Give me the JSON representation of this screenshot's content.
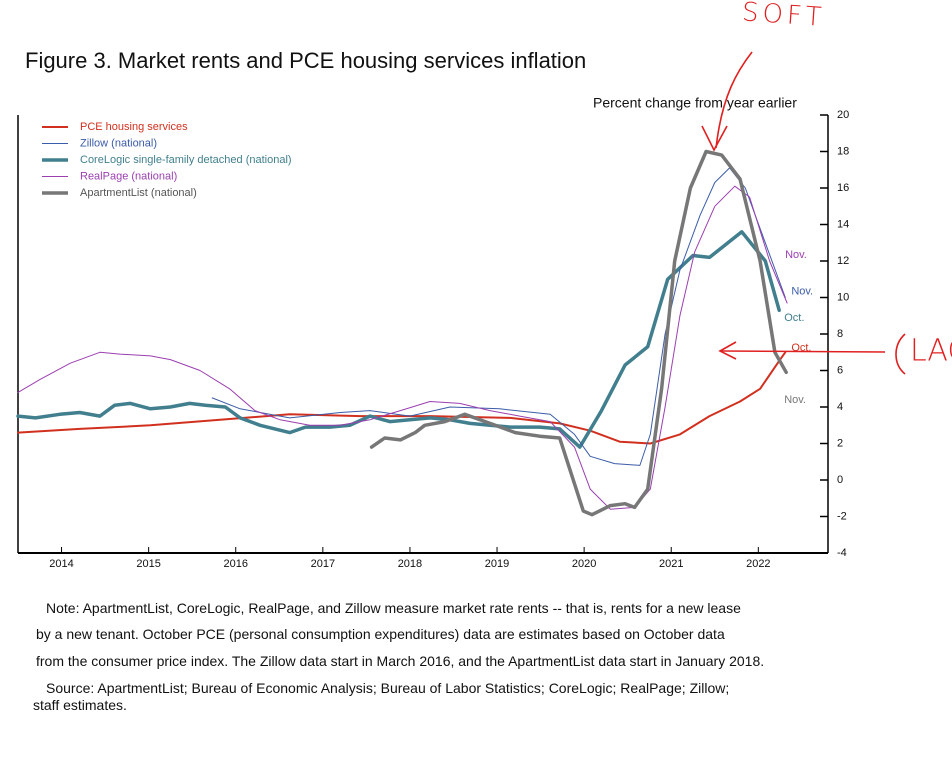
{
  "chart_data": {
    "type": "line",
    "title": "Figure 3. Market rents and PCE housing services inflation",
    "y_label": "Percent change from year earlier",
    "xlim": [
      2014,
      2023.3
    ],
    "ylim": [
      -4,
      20
    ],
    "yticks": [
      -4,
      -2,
      0,
      2,
      4,
      6,
      8,
      10,
      12,
      14,
      16,
      18,
      20
    ],
    "xticks": [
      {
        "value": 2014.5,
        "label": "2014"
      },
      {
        "value": 2015.5,
        "label": "2015"
      },
      {
        "value": 2016.5,
        "label": "2016"
      },
      {
        "value": 2017.5,
        "label": "2017"
      },
      {
        "value": 2018.5,
        "label": "2018"
      },
      {
        "value": 2019.5,
        "label": "2019"
      },
      {
        "value": 2020.5,
        "label": "2020"
      },
      {
        "value": 2021.5,
        "label": "2021"
      },
      {
        "value": 2022.5,
        "label": "2022"
      }
    ],
    "series": [
      {
        "name": "PCE housing services",
        "color": "#d2301e",
        "line_width": 2,
        "end_label": "Oct.",
        "x": [
          2014.0,
          2014.71,
          2015.52,
          2016.32,
          2017.12,
          2017.93,
          2018.73,
          2019.65,
          2020.22,
          2020.57,
          2020.91,
          2021.26,
          2021.6,
          2021.94,
          2022.29,
          2022.52,
          2022.75,
          2022.81
        ],
        "values": [
          2.6,
          2.8,
          3.0,
          3.3,
          3.6,
          3.5,
          3.5,
          3.4,
          3.1,
          2.7,
          2.1,
          2.0,
          2.5,
          3.5,
          4.3,
          5.0,
          6.6,
          7.0
        ]
      },
      {
        "name": "Zillow (national)",
        "color": "#3b5ca8",
        "line_width": 1,
        "end_label": "Nov.",
        "x": [
          2016.23,
          2016.55,
          2017.12,
          2017.7,
          2018.04,
          2018.5,
          2018.96,
          2019.53,
          2020.11,
          2020.39,
          2020.57,
          2020.85,
          2021.14,
          2021.26,
          2021.43,
          2021.6,
          2021.83,
          2022.0,
          2022.17,
          2022.35,
          2022.58,
          2022.81
        ],
        "values": [
          4.5,
          3.9,
          3.4,
          3.7,
          3.8,
          3.5,
          4.0,
          3.9,
          3.6,
          2.5,
          1.3,
          0.9,
          0.8,
          2.5,
          8,
          11.5,
          14.5,
          16.3,
          17.1,
          16.0,
          13,
          10
        ]
      },
      {
        "name": "CoreLogic single-family detached (national)",
        "color": "#417f8e",
        "line_width": 3.5,
        "end_label": "Oct.",
        "x": [
          2014.0,
          2014.2,
          2014.48,
          2014.71,
          2014.94,
          2015.11,
          2015.29,
          2015.52,
          2015.75,
          2015.97,
          2016.15,
          2016.38,
          2016.55,
          2016.78,
          2017.12,
          2017.3,
          2017.58,
          2017.81,
          2018.04,
          2018.27,
          2018.5,
          2018.73,
          2018.96,
          2019.19,
          2019.42,
          2019.65,
          2019.99,
          2020.22,
          2020.45,
          2020.7,
          2020.97,
          2021.23,
          2021.46,
          2021.75,
          2021.94,
          2022.31,
          2022.58,
          2022.74
        ],
        "values": [
          3.5,
          3.4,
          3.6,
          3.7,
          3.5,
          4.1,
          4.2,
          3.9,
          4.0,
          4.2,
          4.1,
          4.0,
          3.4,
          3.0,
          2.6,
          2.9,
          2.9,
          3.0,
          3.5,
          3.2,
          3.3,
          3.4,
          3.3,
          3.1,
          3.0,
          2.9,
          2.9,
          2.8,
          1.8,
          3.8,
          6.3,
          7.3,
          11,
          12.3,
          12.2,
          13.6,
          12,
          9.3
        ]
      },
      {
        "name": "RealPage (national)",
        "color": "#9b3fb0",
        "line_width": 1,
        "end_label": "Nov.",
        "x": [
          2014.0,
          2014.25,
          2014.6,
          2014.94,
          2015.17,
          2015.52,
          2015.75,
          2016.09,
          2016.43,
          2016.72,
          2017.01,
          2017.35,
          2017.7,
          2018.04,
          2018.39,
          2018.73,
          2019.07,
          2019.42,
          2019.76,
          2020.11,
          2020.39,
          2020.57,
          2020.8,
          2021.08,
          2021.26,
          2021.43,
          2021.6,
          2021.77,
          2022.0,
          2022.23,
          2022.4,
          2022.63,
          2022.83
        ],
        "values": [
          4.8,
          5.5,
          6.4,
          7.0,
          6.9,
          6.8,
          6.6,
          6.0,
          5.0,
          3.8,
          3.3,
          3.0,
          3.0,
          3.3,
          3.8,
          4.3,
          4.2,
          3.8,
          3.5,
          3.2,
          1.8,
          -0.5,
          -1.6,
          -1.5,
          -0.5,
          4,
          9,
          12.5,
          15,
          16.1,
          15.5,
          12,
          9.7
        ]
      },
      {
        "name": "ApartmentList (national)",
        "color": "#777777",
        "line_width": 3.5,
        "end_label": "Nov.",
        "x": [
          2018.06,
          2018.21,
          2018.39,
          2018.56,
          2018.67,
          2018.9,
          2019.13,
          2019.42,
          2019.71,
          2019.99,
          2020.22,
          2020.49,
          2020.59,
          2020.8,
          2020.97,
          2021.08,
          2021.23,
          2021.39,
          2021.54,
          2021.72,
          2021.9,
          2022.08,
          2022.29,
          2022.52,
          2022.69,
          2022.82
        ],
        "values": [
          1.8,
          2.3,
          2.2,
          2.6,
          3.0,
          3.2,
          3.6,
          3.1,
          2.6,
          2.4,
          2.3,
          -1.7,
          -1.9,
          -1.4,
          -1.3,
          -1.5,
          -0.5,
          5,
          12,
          16,
          18,
          17.8,
          16.5,
          12,
          7,
          5.9
        ]
      }
    ],
    "notes": [
      "Note: ApartmentList, CoreLogic, RealPage, and Zillow measure market rate rents -- that is, rents for a new lease",
      "by a new tenant. October PCE (personal consumption expenditures) data are estimates based on October data",
      "from the consumer price index. The Zillow data start in March 2016, and the ApartmentList data start in January 2018.",
      "Source: ApartmentList; Bureau of Economic Analysis; Bureau of Labor Statistics; CoreLogic; RealPage; Zillow;",
      "staff estimates."
    ],
    "annotations": [
      "SOFT",
      "LAG"
    ]
  }
}
